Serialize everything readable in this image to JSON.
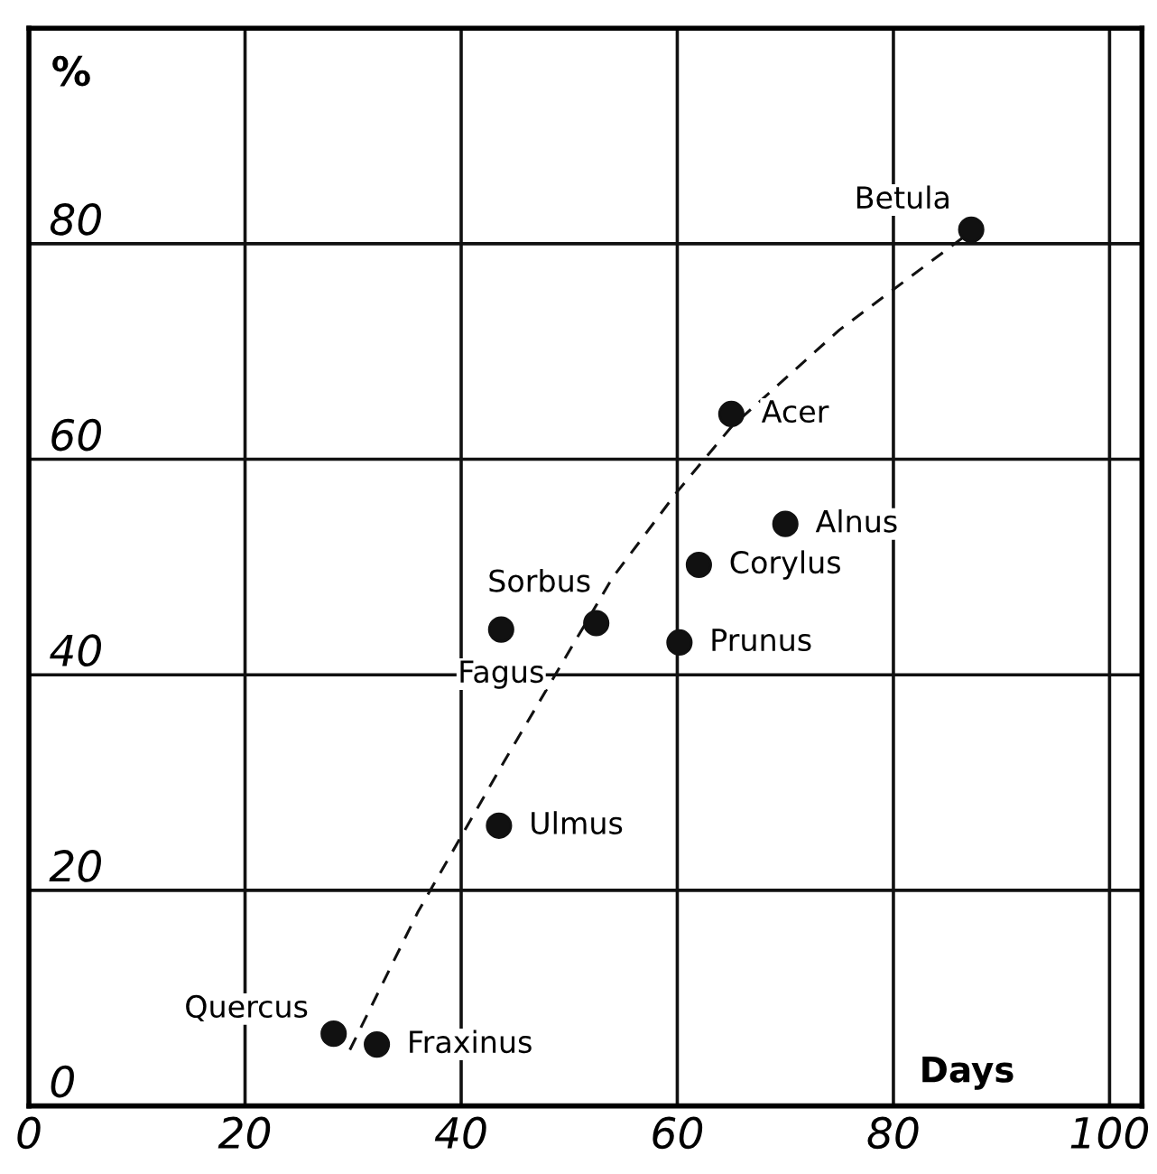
{
  "chart_data": {
    "type": "scatter",
    "xlabel": "Days",
    "ylabel": "%",
    "series": [
      {
        "color": "#111111",
        "marker": "circle",
        "x": [
          87.2,
          65,
          70,
          62,
          52.5,
          43.7,
          60.2,
          43.5,
          28.2,
          32.2
        ],
        "values": [
          81.3,
          64.2,
          54,
          50.2,
          44.8,
          44.2,
          43,
          26,
          6.7,
          5.7
        ]
      },
      {
        "type": "line",
        "color": "#111111",
        "marker": "none",
        "line_style": "dashed",
        "x": [
          29.7,
          36,
          44,
          54,
          60,
          65,
          75,
          87
        ],
        "values": [
          5.2,
          18,
          32,
          49,
          57,
          63,
          72,
          81
        ]
      }
    ],
    "annotations": [
      {
        "text": "Betula",
        "x": 87.2,
        "y": 81.3
      },
      {
        "text": "Acer",
        "x": 65,
        "y": 64.2
      },
      {
        "text": "Alnus",
        "x": 70,
        "y": 54
      },
      {
        "text": "Corylus",
        "x": 62,
        "y": 50.2
      },
      {
        "text": "Sorbus",
        "x": 52.5,
        "y": 44.8
      },
      {
        "text": "Fagus",
        "x": 43.7,
        "y": 44.2
      },
      {
        "text": "Prunus",
        "x": 60.2,
        "y": 43
      },
      {
        "text": "Ulmus",
        "x": 43.5,
        "y": 26
      },
      {
        "text": "Quercus",
        "x": 28.2,
        "y": 6.7
      },
      {
        "text": "Fraxinus",
        "x": 32.2,
        "y": 5.7
      }
    ],
    "xlim": [
      0,
      103
    ],
    "ylim": [
      0,
      100
    ],
    "xticks": [
      0,
      20,
      40,
      60,
      80,
      100
    ],
    "yticks": [
      0,
      20,
      40,
      60,
      80
    ],
    "grid": true,
    "legend": false
  }
}
